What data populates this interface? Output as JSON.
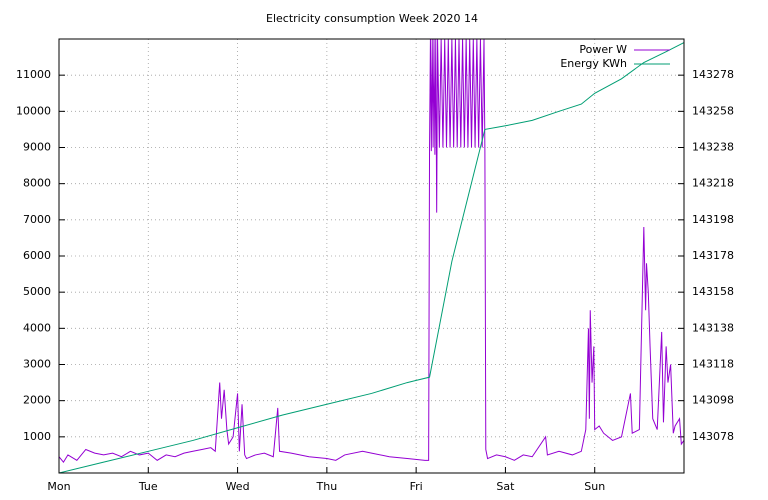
{
  "chart_data": {
    "type": "line",
    "title": "Electricity consumption Week 2020 14",
    "xlim": [
      0,
      7
    ],
    "xticks": [
      {
        "value": 0,
        "label": "Mon"
      },
      {
        "value": 1,
        "label": "Tue"
      },
      {
        "value": 2,
        "label": "Wed"
      },
      {
        "value": 3,
        "label": "Thu"
      },
      {
        "value": 4,
        "label": "Fri"
      },
      {
        "value": 5,
        "label": "Sat"
      },
      {
        "value": 6,
        "label": "Sun"
      }
    ],
    "ylim": [
      0,
      12000
    ],
    "yticks": [
      1000,
      2000,
      3000,
      4000,
      5000,
      6000,
      7000,
      8000,
      9000,
      10000,
      11000
    ],
    "y2lim": [
      143058,
      143298
    ],
    "y2ticks": [
      143078,
      143098,
      143118,
      143138,
      143158,
      143178,
      143198,
      143218,
      143238,
      143258,
      143278
    ],
    "grid": true,
    "legend": "top-right",
    "series": [
      {
        "name": "Power W",
        "color": "#9400d3",
        "x": [
          0,
          0.05,
          0.1,
          0.2,
          0.3,
          0.4,
          0.5,
          0.6,
          0.7,
          0.8,
          0.9,
          1.0,
          1.1,
          1.2,
          1.3,
          1.4,
          1.5,
          1.6,
          1.7,
          1.75,
          1.8,
          1.82,
          1.85,
          1.88,
          1.9,
          1.95,
          2.0,
          2.02,
          2.05,
          2.08,
          2.1,
          2.2,
          2.3,
          2.4,
          2.45,
          2.47,
          2.6,
          2.8,
          3.0,
          3.1,
          3.2,
          3.4,
          3.5,
          3.7,
          3.9,
          4.1,
          4.14,
          4.15,
          4.16,
          4.17,
          4.18,
          4.19,
          4.2,
          4.21,
          4.22,
          4.23,
          4.24,
          4.26,
          4.28,
          4.3,
          4.32,
          4.34,
          4.36,
          4.38,
          4.4,
          4.42,
          4.44,
          4.46,
          4.48,
          4.5,
          4.52,
          4.54,
          4.56,
          4.58,
          4.6,
          4.62,
          4.64,
          4.66,
          4.68,
          4.7,
          4.72,
          4.74,
          4.76,
          4.77,
          4.78,
          4.8,
          4.9,
          5.0,
          5.1,
          5.2,
          5.3,
          5.45,
          5.47,
          5.6,
          5.75,
          5.85,
          5.9,
          5.93,
          5.94,
          5.95,
          5.97,
          5.99,
          6.0,
          6.05,
          6.1,
          6.2,
          6.3,
          6.4,
          6.42,
          6.5,
          6.55,
          6.57,
          6.58,
          6.6,
          6.62,
          6.65,
          6.7,
          6.75,
          6.77,
          6.8,
          6.82,
          6.85,
          6.88,
          6.9,
          6.95,
          6.97,
          7.0
        ],
        "values": [
          450,
          300,
          500,
          350,
          650,
          550,
          500,
          550,
          450,
          600,
          500,
          550,
          350,
          500,
          450,
          550,
          600,
          650,
          700,
          600,
          2500,
          1500,
          2300,
          1200,
          800,
          1000,
          2200,
          600,
          1900,
          500,
          400,
          500,
          550,
          450,
          1800,
          600,
          550,
          450,
          400,
          350,
          500,
          600,
          550,
          450,
          400,
          350,
          350,
          9000,
          12000,
          8900,
          12000,
          9000,
          12000,
          8800,
          12000,
          7200,
          12000,
          9000,
          12000,
          9000,
          12000,
          9000,
          12000,
          9000,
          12000,
          9000,
          12000,
          9000,
          12000,
          9000,
          12000,
          9000,
          12000,
          9000,
          12000,
          9000,
          12000,
          9000,
          12000,
          9000,
          12000,
          9000,
          12000,
          8900,
          650,
          400,
          500,
          450,
          350,
          500,
          450,
          1000,
          500,
          600,
          500,
          600,
          1200,
          4000,
          1500,
          4500,
          2500,
          3500,
          1200,
          1300,
          1100,
          900,
          1000,
          2200,
          1100,
          1200,
          6800,
          4500,
          5800,
          5000,
          3500,
          1500,
          1200,
          3900,
          1400,
          3500,
          2500,
          3000,
          1100,
          1300,
          1500,
          800,
          900
        ]
      },
      {
        "name": "Energy KWh",
        "color": "#009e73",
        "axis": "y2",
        "x": [
          0,
          0.5,
          1,
          1.5,
          2,
          2.5,
          3,
          3.5,
          3.9,
          4.15,
          4.4,
          4.77,
          5,
          5.3,
          5.6,
          5.85,
          6,
          6.3,
          6.55,
          6.8,
          7
        ],
        "values": [
          143058,
          143064,
          143070,
          143076,
          143083,
          143090,
          143096,
          143102,
          143108,
          143111,
          143175,
          143248,
          143250,
          143253,
          143258,
          143262,
          143268,
          143276,
          143285,
          143291,
          143296
        ]
      }
    ]
  }
}
